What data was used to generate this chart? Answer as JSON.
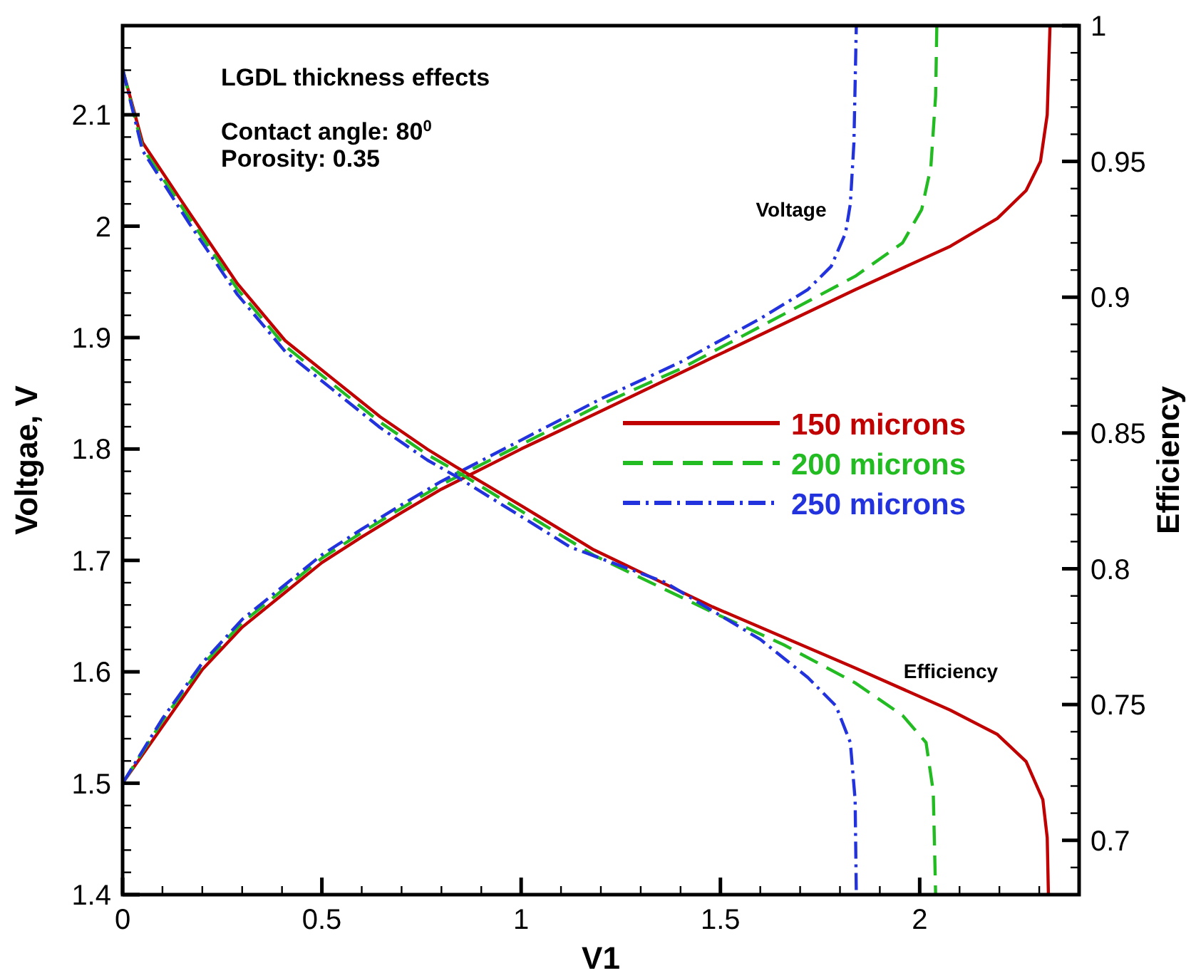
{
  "chart_data": {
    "type": "line",
    "xlabel": "V1",
    "ylabel": "Voltgae, V",
    "y2label": "Efficiency",
    "xlim": [
      0,
      2.4
    ],
    "ylim": [
      1.4,
      2.18
    ],
    "y2lim": [
      0.68,
      1
    ],
    "xticks": [
      0,
      {
        "value": 0.1,
        "label": null
      },
      {
        "value": 0.2,
        "label": null
      },
      {
        "value": 0.3,
        "label": null
      },
      {
        "value": 0.4,
        "label": null
      },
      0.5,
      {
        "value": 0.6,
        "label": null
      },
      {
        "value": 0.7,
        "label": null
      },
      {
        "value": 0.8,
        "label": null
      },
      {
        "value": 0.9,
        "label": null
      },
      1,
      {
        "value": 1.1,
        "label": null
      },
      {
        "value": 1.2,
        "label": null
      },
      {
        "value": 1.3,
        "label": null
      },
      {
        "value": 1.4,
        "label": null
      },
      1.5,
      {
        "value": 1.6,
        "label": null
      },
      {
        "value": 1.7,
        "label": null
      },
      {
        "value": 1.8,
        "label": null
      },
      {
        "value": 1.9,
        "label": null
      },
      2,
      {
        "value": 2.1,
        "label": null
      },
      {
        "value": 2.2,
        "label": null
      },
      {
        "value": 2.3,
        "label": null
      }
    ],
    "yticks": [
      1.4,
      {
        "value": 1.42,
        "label": null
      },
      {
        "value": 1.44,
        "label": null
      },
      {
        "value": 1.46,
        "label": null
      },
      {
        "value": 1.48,
        "label": null
      },
      1.5,
      {
        "value": 1.52,
        "label": null
      },
      {
        "value": 1.54,
        "label": null
      },
      {
        "value": 1.56,
        "label": null
      },
      {
        "value": 1.58,
        "label": null
      },
      1.6,
      {
        "value": 1.62,
        "label": null
      },
      {
        "value": 1.64,
        "label": null
      },
      {
        "value": 1.66,
        "label": null
      },
      {
        "value": 1.68,
        "label": null
      },
      1.7,
      {
        "value": 1.72,
        "label": null
      },
      {
        "value": 1.74,
        "label": null
      },
      {
        "value": 1.76,
        "label": null
      },
      {
        "value": 1.78,
        "label": null
      },
      1.8,
      {
        "value": 1.82,
        "label": null
      },
      {
        "value": 1.84,
        "label": null
      },
      {
        "value": 1.86,
        "label": null
      },
      {
        "value": 1.88,
        "label": null
      },
      1.9,
      {
        "value": 1.92,
        "label": null
      },
      {
        "value": 1.94,
        "label": null
      },
      {
        "value": 1.96,
        "label": null
      },
      {
        "value": 1.98,
        "label": null
      },
      2,
      {
        "value": 2.02,
        "label": null
      },
      {
        "value": 2.04,
        "label": null
      },
      {
        "value": 2.06,
        "label": null
      },
      {
        "value": 2.08,
        "label": null
      },
      2.1,
      {
        "value": 2.12,
        "label": null
      },
      {
        "value": 2.14,
        "label": null
      },
      {
        "value": 2.16,
        "label": null
      }
    ],
    "y2ticks": [
      {
        "value": 0.69,
        "label": null
      },
      0.7,
      {
        "value": 0.71,
        "label": null
      },
      {
        "value": 0.72,
        "label": null
      },
      {
        "value": 0.73,
        "label": null
      },
      {
        "value": 0.74,
        "label": null
      },
      0.75,
      {
        "value": 0.76,
        "label": null
      },
      {
        "value": 0.77,
        "label": null
      },
      {
        "value": 0.78,
        "label": null
      },
      {
        "value": 0.79,
        "label": null
      },
      0.8,
      {
        "value": 0.81,
        "label": null
      },
      {
        "value": 0.82,
        "label": null
      },
      {
        "value": 0.83,
        "label": null
      },
      {
        "value": 0.84,
        "label": null
      },
      0.85,
      {
        "value": 0.86,
        "label": null
      },
      {
        "value": 0.87,
        "label": null
      },
      {
        "value": 0.88,
        "label": null
      },
      {
        "value": 0.89,
        "label": null
      },
      0.9,
      {
        "value": 0.91,
        "label": null
      },
      {
        "value": 0.92,
        "label": null
      },
      {
        "value": 0.93,
        "label": null
      },
      {
        "value": 0.94,
        "label": null
      },
      0.95,
      {
        "value": 0.96,
        "label": null
      },
      {
        "value": 0.97,
        "label": null
      },
      {
        "value": 0.98,
        "label": null
      },
      {
        "value": 0.99,
        "label": null
      },
      1
    ],
    "legend": "right",
    "grid": false,
    "marker": "none",
    "annotations": [
      "LGDL thickness effects",
      "Contact angle: 80$^{0}$",
      "Porosity: 0.35",
      "Voltage",
      "Efficiency"
    ],
    "series": [
      {
        "name": "150 microns",
        "color": "#c00000",
        "line_style": "solid",
        "x": [
          0,
          0.1,
          0.2,
          0.3,
          0.4,
          0.5,
          0.6,
          0.7,
          0.8,
          1.0,
          1.2,
          1.48,
          1.838,
          2.077,
          2.195,
          2.267,
          2.303,
          2.32,
          2.327
        ],
        "values": [
          1.5,
          1.551,
          1.602,
          1.64,
          1.669,
          1.698,
          1.721,
          1.743,
          1.764,
          1.8,
          1.834,
          1.882,
          1.943,
          1.982,
          2.007,
          2.032,
          2.058,
          2.1,
          2.18
        ]
      },
      {
        "name": "200 microns",
        "color": "#22bb22",
        "line_style": "dashed",
        "x": [
          0,
          0.1,
          0.2,
          0.3,
          0.4,
          0.5,
          0.6,
          0.7,
          0.8,
          1.0,
          1.2,
          1.4,
          1.659,
          1.838,
          1.957,
          2.005,
          2.028,
          2.04,
          2.043
        ],
        "values": [
          1.5,
          1.556,
          1.606,
          1.644,
          1.673,
          1.702,
          1.725,
          1.747,
          1.768,
          1.804,
          1.84,
          1.872,
          1.921,
          1.955,
          1.985,
          2.015,
          2.053,
          2.117,
          2.18
        ]
      },
      {
        "name": "250 microns",
        "color": "#2233dd",
        "line_style": "dashdot",
        "x": [
          0,
          0.1,
          0.2,
          0.3,
          0.4,
          0.5,
          0.6,
          0.7,
          0.8,
          1.0,
          1.2,
          1.4,
          1.6,
          1.719,
          1.778,
          1.814,
          1.826,
          1.835,
          1.841
        ],
        "values": [
          1.5,
          1.558,
          1.608,
          1.647,
          1.676,
          1.705,
          1.728,
          1.75,
          1.771,
          1.808,
          1.845,
          1.878,
          1.917,
          1.943,
          1.964,
          1.994,
          2.02,
          2.075,
          2.18
        ]
      },
      {
        "color": "#c00000",
        "line_style": "solid",
        "axis": "y2",
        "x": [
          0,
          0.05,
          0.168,
          0.288,
          0.408,
          0.527,
          0.646,
          0.765,
          0.837,
          1.003,
          1.182,
          1.48,
          1.838,
          2.076,
          2.195,
          2.267,
          2.309,
          2.32,
          2.323
        ],
        "values": [
          0.984,
          0.957,
          0.931,
          0.905,
          0.884,
          0.87,
          0.856,
          0.844,
          0.8375,
          0.823,
          0.807,
          0.786,
          0.7635,
          0.748,
          0.739,
          0.729,
          0.715,
          0.701,
          0.68
        ]
      },
      {
        "color": "#22bb22",
        "line_style": "dashed",
        "axis": "y2",
        "x": [
          0,
          0.05,
          0.168,
          0.288,
          0.408,
          0.527,
          0.646,
          0.765,
          0.837,
          1.003,
          1.182,
          1.48,
          1.659,
          1.838,
          1.957,
          2.016,
          2.034,
          2.04
        ],
        "values": [
          0.984,
          0.955,
          0.929,
          0.903,
          0.882,
          0.868,
          0.854,
          0.842,
          0.836,
          0.821,
          0.805,
          0.784,
          0.772,
          0.758,
          0.746,
          0.736,
          0.718,
          0.68
        ]
      },
      {
        "color": "#2233dd",
        "line_style": "dashdot",
        "axis": "y2",
        "x": [
          0,
          0.05,
          0.168,
          0.288,
          0.408,
          0.527,
          0.646,
          0.765,
          0.837,
          1.003,
          1.123,
          1.361,
          1.6,
          1.719,
          1.79,
          1.826,
          1.838,
          1.841
        ],
        "values": [
          0.984,
          0.954,
          0.927,
          0.901,
          0.88,
          0.866,
          0.852,
          0.84,
          0.834,
          0.819,
          0.808,
          0.795,
          0.774,
          0.76,
          0.7495,
          0.736,
          0.715,
          0.68
        ]
      }
    ]
  }
}
